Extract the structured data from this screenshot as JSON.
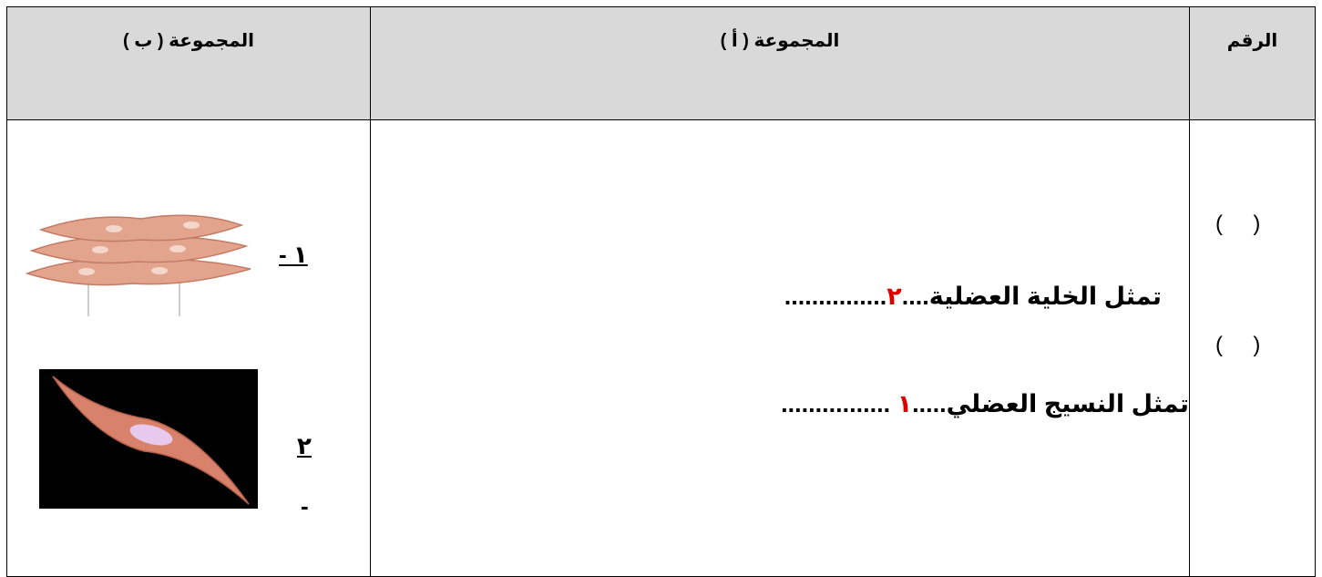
{
  "table": {
    "header": [
      "المجموعة ( ب )",
      "المجموعة ( أ )",
      "الرقم"
    ],
    "number_column": [
      "(     )",
      "(     )"
    ],
    "group_a": [
      {
        "prefix": "تمثل الخلية العضلية....",
        "number": "٢",
        "suffix": "..............."
      },
      {
        "prefix": "تمثل النسيج العضلي.....",
        "number": "١",
        "suffix": " ................"
      }
    ],
    "group_b": [
      {
        "label": "١ -"
      },
      {
        "label": "٢",
        "dash": "-"
      }
    ]
  }
}
